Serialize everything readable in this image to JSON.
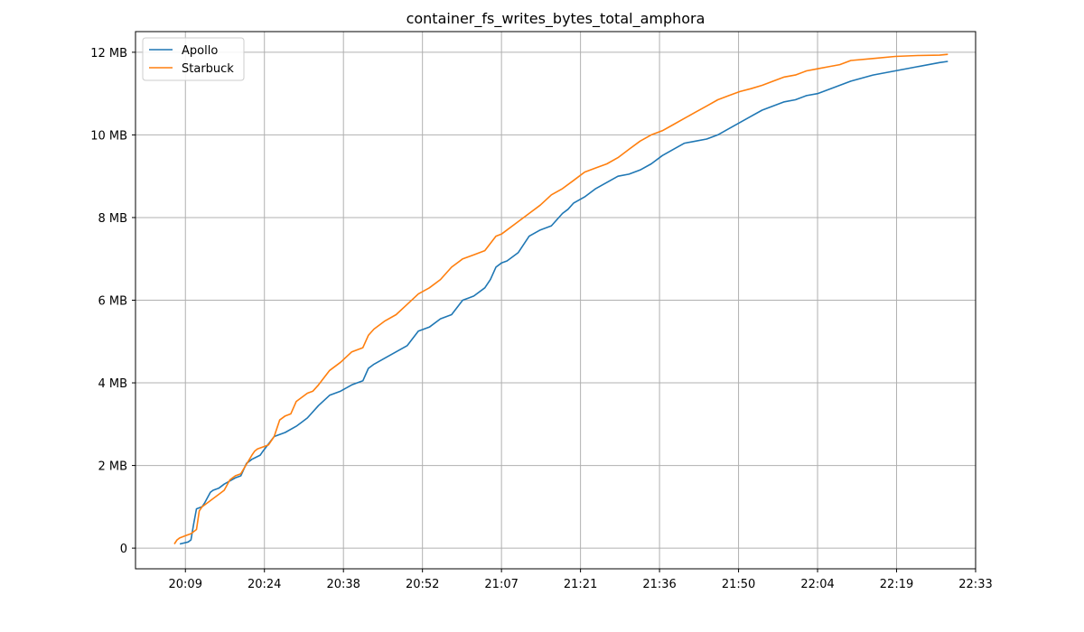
{
  "chart_data": {
    "type": "line",
    "title": "container_fs_writes_bytes_total_amphora",
    "xlabel": "",
    "ylabel": "",
    "x_ticks": [
      "20:09",
      "20:24",
      "20:38",
      "20:52",
      "21:07",
      "21:21",
      "21:36",
      "21:50",
      "22:04",
      "22:19",
      "22:33"
    ],
    "x_tick_minutes": [
      0,
      14.25,
      28.5,
      42.75,
      57,
      71.25,
      85.5,
      99.75,
      114,
      128.25,
      142.5
    ],
    "xlim_minutes": [
      -9,
      142.5
    ],
    "y_ticks": [
      "0",
      "2 MB",
      "4 MB",
      "6 MB",
      "8 MB",
      "10 MB",
      "12 MB"
    ],
    "y_tick_values": [
      0,
      2,
      4,
      6,
      8,
      10,
      12
    ],
    "ylim": [
      -0.5,
      12.5
    ],
    "y_unit": "MB",
    "grid": true,
    "legend_position": "top-left",
    "series": [
      {
        "name": "Apollo",
        "color": "#1f77b4",
        "x": [
          -1.0,
          0.5,
          1.0,
          1.5,
          2.0,
          3.0,
          3.5,
          4.5,
          5.0,
          6.0,
          7.0,
          9.0,
          10.0,
          11.0,
          12.0,
          13.5,
          14.0,
          16.0,
          18.0,
          20.0,
          21.0,
          22.0,
          24.0,
          26.0,
          28.0,
          30.0,
          32.0,
          33.0,
          34.0,
          36.0,
          38.0,
          40.0,
          42.0,
          44.0,
          46.0,
          48.0,
          50.0,
          51.0,
          52.0,
          54.0,
          55.0,
          56.0,
          57.0,
          58.0,
          60.0,
          62.0,
          64.0,
          66.0,
          68.0,
          69.0,
          70.0,
          72.0,
          74.0,
          76.0,
          78.0,
          80.0,
          82.0,
          84.0,
          86.0,
          88.0,
          90.0,
          92.0,
          94.0,
          96.0,
          98.0,
          100.0,
          102.0,
          104.0,
          106.0,
          108.0,
          110.0,
          112.0,
          114.0,
          116.0,
          118.0,
          120.0,
          124.0,
          128.0,
          132.0,
          136.0,
          137.5
        ],
        "values": [
          0.1,
          0.15,
          0.2,
          0.6,
          0.95,
          1.0,
          1.1,
          1.35,
          1.4,
          1.45,
          1.55,
          1.7,
          1.75,
          2.05,
          2.15,
          2.25,
          2.35,
          2.7,
          2.8,
          2.95,
          3.05,
          3.15,
          3.45,
          3.7,
          3.8,
          3.95,
          4.05,
          4.35,
          4.45,
          4.6,
          4.75,
          4.9,
          5.25,
          5.35,
          5.55,
          5.65,
          6.0,
          6.05,
          6.1,
          6.3,
          6.5,
          6.8,
          6.9,
          6.95,
          7.15,
          7.55,
          7.7,
          7.8,
          8.1,
          8.2,
          8.35,
          8.5,
          8.7,
          8.85,
          9.0,
          9.05,
          9.15,
          9.3,
          9.5,
          9.65,
          9.8,
          9.85,
          9.9,
          10.0,
          10.15,
          10.3,
          10.45,
          10.6,
          10.7,
          10.8,
          10.85,
          10.95,
          11.0,
          11.1,
          11.2,
          11.3,
          11.45,
          11.55,
          11.65,
          11.75,
          11.78
        ]
      },
      {
        "name": "Starbuck",
        "color": "#ff7f0e",
        "x": [
          -2.0,
          -1.5,
          -1.0,
          0.0,
          1.0,
          2.0,
          2.5,
          3.0,
          3.5,
          4.5,
          5.0,
          6.0,
          7.0,
          8.0,
          9.0,
          10.0,
          12.0,
          12.5,
          13.0,
          14.0,
          15.0,
          16.0,
          17.0,
          18.0,
          19.0,
          20.0,
          22.0,
          23.0,
          24.0,
          26.0,
          28.0,
          30.0,
          32.0,
          33.0,
          34.0,
          36.0,
          38.0,
          40.0,
          42.0,
          44.0,
          46.0,
          48.0,
          50.0,
          52.0,
          54.0,
          56.0,
          57.0,
          58.0,
          60.0,
          62.0,
          64.0,
          66.0,
          68.0,
          70.0,
          72.0,
          74.0,
          76.0,
          78.0,
          80.0,
          82.0,
          84.0,
          86.0,
          88.0,
          90.0,
          92.0,
          94.0,
          96.0,
          98.0,
          100.0,
          102.0,
          104.0,
          106.0,
          108.0,
          110.0,
          112.0,
          114.0,
          116.0,
          118.0,
          120.0,
          124.0,
          128.0,
          132.0,
          136.0,
          137.5
        ],
        "values": [
          0.1,
          0.2,
          0.25,
          0.3,
          0.35,
          0.45,
          0.9,
          1.0,
          1.05,
          1.15,
          1.2,
          1.3,
          1.4,
          1.65,
          1.75,
          1.8,
          2.25,
          2.35,
          2.4,
          2.45,
          2.5,
          2.7,
          3.1,
          3.2,
          3.25,
          3.55,
          3.75,
          3.8,
          3.95,
          4.3,
          4.5,
          4.75,
          4.85,
          5.15,
          5.3,
          5.5,
          5.65,
          5.9,
          6.15,
          6.3,
          6.5,
          6.8,
          7.0,
          7.1,
          7.2,
          7.55,
          7.6,
          7.7,
          7.9,
          8.1,
          8.3,
          8.55,
          8.7,
          8.9,
          9.1,
          9.2,
          9.3,
          9.45,
          9.65,
          9.85,
          10.0,
          10.1,
          10.25,
          10.4,
          10.55,
          10.7,
          10.85,
          10.95,
          11.05,
          11.12,
          11.2,
          11.3,
          11.4,
          11.45,
          11.55,
          11.6,
          11.65,
          11.7,
          11.8,
          11.85,
          11.9,
          11.92,
          11.93,
          11.95
        ]
      }
    ]
  }
}
